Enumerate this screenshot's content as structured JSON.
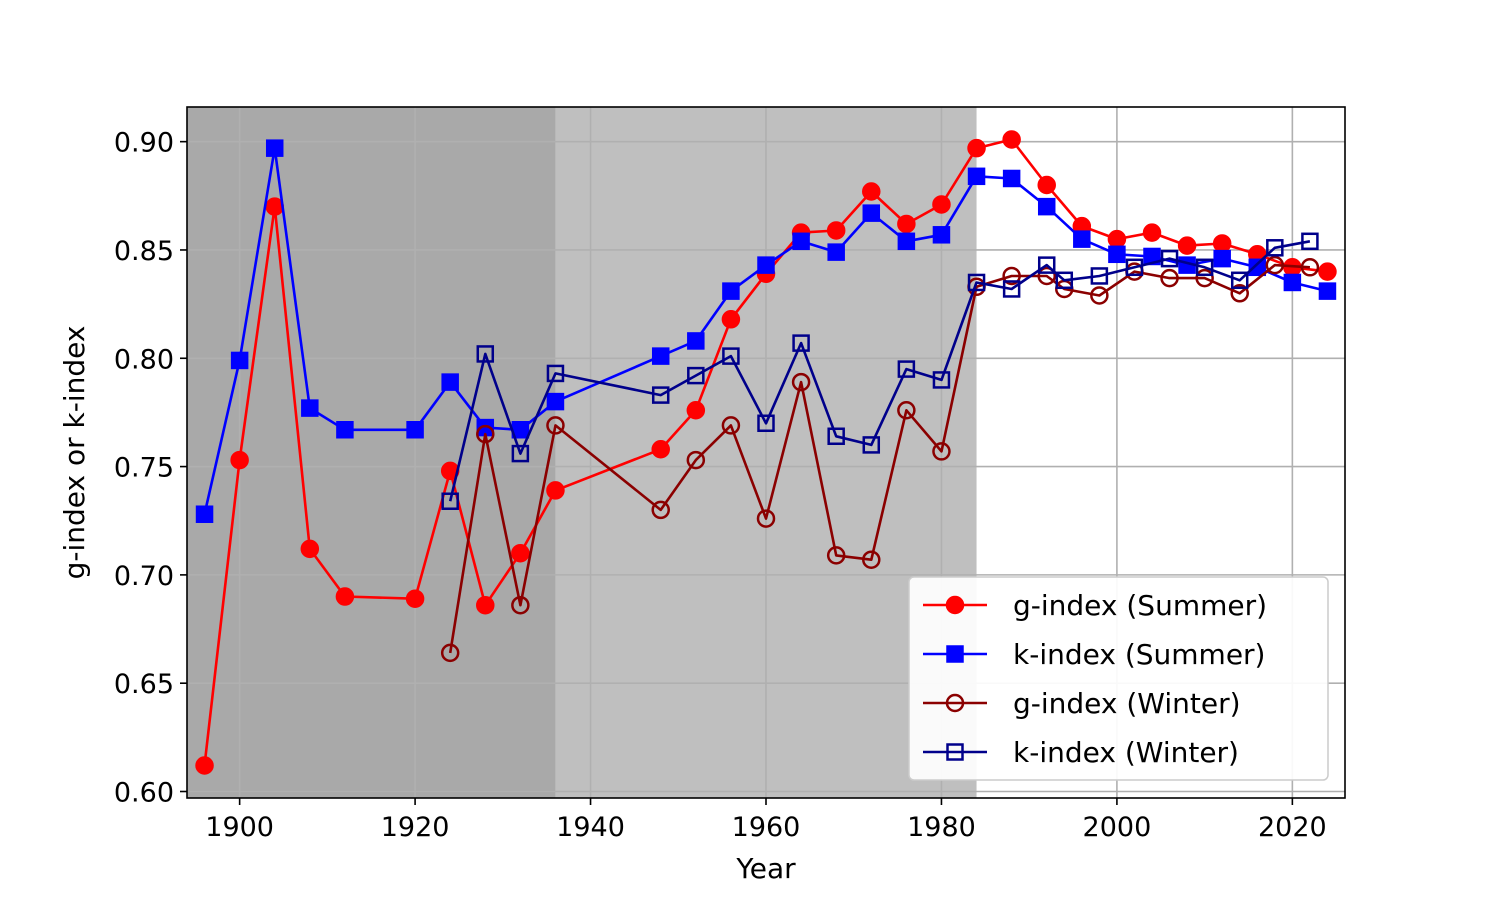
{
  "chart_data": {
    "type": "line",
    "title": "",
    "xlabel": "Year",
    "ylabel": "g-index or k-index",
    "xlim": [
      1894,
      2026
    ],
    "ylim": [
      0.597,
      0.916
    ],
    "xticks": [
      1900,
      1920,
      1940,
      1960,
      1980,
      2000,
      2020
    ],
    "yticks": [
      0.6,
      0.65,
      0.7,
      0.75,
      0.8,
      0.85,
      0.9
    ],
    "grid": true,
    "legend_position": "lower-right",
    "shaded_regions": [
      {
        "from": 1894,
        "to": 1936,
        "color": "#a9a9a9"
      },
      {
        "from": 1936,
        "to": 1984,
        "color": "#bfbfbf"
      }
    ],
    "series": [
      {
        "name": "g-index (Summer)",
        "color": "#ff0000",
        "marker": "circle-filled",
        "x": [
          1896,
          1900,
          1904,
          1908,
          1912,
          1920,
          1924,
          1928,
          1932,
          1936,
          1948,
          1952,
          1956,
          1960,
          1964,
          1968,
          1972,
          1976,
          1980,
          1984,
          1988,
          1992,
          1996,
          2000,
          2004,
          2008,
          2012,
          2016,
          2020,
          2024
        ],
        "values": [
          0.612,
          0.753,
          0.87,
          0.712,
          0.69,
          0.689,
          0.748,
          0.686,
          0.71,
          0.739,
          0.758,
          0.776,
          0.818,
          0.839,
          0.858,
          0.859,
          0.877,
          0.862,
          0.871,
          0.897,
          0.901,
          0.88,
          0.861,
          0.855,
          0.858,
          0.852,
          0.853,
          0.848,
          0.842,
          0.84
        ]
      },
      {
        "name": "k-index (Summer)",
        "color": "#0000ff",
        "marker": "square-filled",
        "x": [
          1896,
          1900,
          1904,
          1908,
          1912,
          1920,
          1924,
          1928,
          1932,
          1936,
          1948,
          1952,
          1956,
          1960,
          1964,
          1968,
          1972,
          1976,
          1980,
          1984,
          1988,
          1992,
          1996,
          2000,
          2004,
          2008,
          2012,
          2016,
          2020,
          2024
        ],
        "values": [
          0.728,
          0.799,
          0.897,
          0.777,
          0.767,
          0.767,
          0.789,
          0.768,
          0.767,
          0.78,
          0.801,
          0.808,
          0.831,
          0.843,
          0.854,
          0.849,
          0.867,
          0.854,
          0.857,
          0.884,
          0.883,
          0.87,
          0.855,
          0.848,
          0.847,
          0.843,
          0.846,
          0.842,
          0.835,
          0.831
        ]
      },
      {
        "name": "g-index (Winter)",
        "color": "#8b0000",
        "marker": "circle-open",
        "x": [
          1924,
          1928,
          1932,
          1936,
          1948,
          1952,
          1956,
          1960,
          1964,
          1968,
          1972,
          1976,
          1980,
          1984,
          1988,
          1992,
          1994,
          1998,
          2002,
          2006,
          2010,
          2014,
          2018,
          2022
        ],
        "values": [
          0.664,
          0.765,
          0.686,
          0.769,
          0.73,
          0.753,
          0.769,
          0.726,
          0.789,
          0.709,
          0.707,
          0.776,
          0.757,
          0.833,
          0.838,
          0.838,
          0.832,
          0.829,
          0.84,
          0.837,
          0.837,
          0.83,
          0.843,
          0.842
        ]
      },
      {
        "name": "k-index (Winter)",
        "color": "#00008b",
        "marker": "square-open",
        "x": [
          1924,
          1928,
          1932,
          1936,
          1948,
          1952,
          1956,
          1960,
          1964,
          1968,
          1972,
          1976,
          1980,
          1984,
          1988,
          1992,
          1994,
          1998,
          2002,
          2006,
          2010,
          2014,
          2018,
          2022
        ],
        "values": [
          0.734,
          0.802,
          0.756,
          0.793,
          0.783,
          0.792,
          0.801,
          0.77,
          0.807,
          0.764,
          0.76,
          0.795,
          0.79,
          0.835,
          0.832,
          0.843,
          0.836,
          0.838,
          0.842,
          0.846,
          0.842,
          0.836,
          0.851,
          0.854
        ]
      }
    ]
  }
}
